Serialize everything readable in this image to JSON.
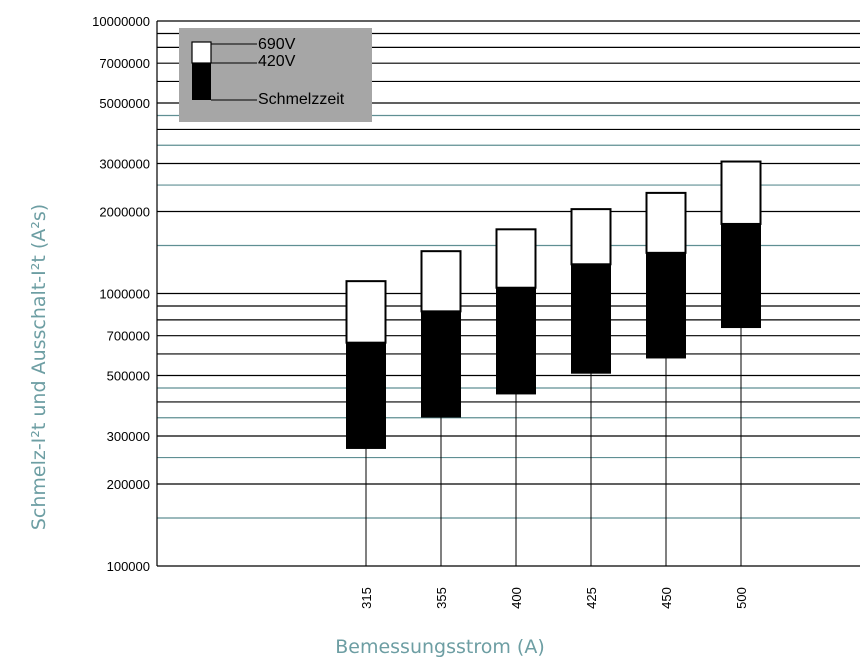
{
  "chart_data": {
    "type": "bar",
    "xlabel": "Bemessungsstrom (A)",
    "ylabel": "Schmelz-I²t und Ausschalt-I²t (A²s)",
    "y_scale": "log",
    "ylim": [
      100000,
      10000000
    ],
    "y_tick_labels": [
      {
        "value": 100000,
        "label": "100000"
      },
      {
        "value": 200000,
        "label": "200000"
      },
      {
        "value": 300000,
        "label": "300000"
      },
      {
        "value": 500000,
        "label": "500000"
      },
      {
        "value": 700000,
        "label": "700000"
      },
      {
        "value": 1000000,
        "label": "1000000"
      },
      {
        "value": 2000000,
        "label": "2000000"
      },
      {
        "value": 3000000,
        "label": "3000000"
      },
      {
        "value": 5000000,
        "label": "5000000"
      },
      {
        "value": 7000000,
        "label": "7000000"
      },
      {
        "value": 10000000,
        "label": "10000000"
      }
    ],
    "gridlines": [
      {
        "value": 150000,
        "color": "#5f8f93"
      },
      {
        "value": 200000,
        "color": "#000000"
      },
      {
        "value": 250000,
        "color": "#5f8f93"
      },
      {
        "value": 300000,
        "color": "#000000"
      },
      {
        "value": 350000,
        "color": "#5f8f93"
      },
      {
        "value": 400000,
        "color": "#000000"
      },
      {
        "value": 450000,
        "color": "#5f8f93"
      },
      {
        "value": 500000,
        "color": "#000000"
      },
      {
        "value": 600000,
        "color": "#000000"
      },
      {
        "value": 700000,
        "color": "#000000"
      },
      {
        "value": 800000,
        "color": "#000000"
      },
      {
        "value": 900000,
        "color": "#000000"
      },
      {
        "value": 1000000,
        "color": "#000000"
      },
      {
        "value": 1500000,
        "color": "#5f8f93"
      },
      {
        "value": 2000000,
        "color": "#000000"
      },
      {
        "value": 2500000,
        "color": "#5f8f93"
      },
      {
        "value": 3000000,
        "color": "#000000"
      },
      {
        "value": 3500000,
        "color": "#5f8f93"
      },
      {
        "value": 4000000,
        "color": "#000000"
      },
      {
        "value": 4500000,
        "color": "#5f8f93"
      },
      {
        "value": 5000000,
        "color": "#000000"
      },
      {
        "value": 6000000,
        "color": "#000000"
      },
      {
        "value": 7000000,
        "color": "#000000"
      },
      {
        "value": 8000000,
        "color": "#000000"
      },
      {
        "value": 9000000,
        "color": "#000000"
      },
      {
        "value": 10000000,
        "color": "#000000"
      }
    ],
    "categories": [
      "315",
      "355",
      "400",
      "425",
      "450",
      "500"
    ],
    "series": [
      {
        "name": "690V",
        "color": "#ffffff",
        "low": [
          660000,
          860000,
          1050000,
          1280000,
          1410000,
          1800000
        ],
        "high": [
          1110000,
          1430000,
          1720000,
          2040000,
          2340000,
          3050000
        ]
      },
      {
        "name": "420V",
        "color": "#000000",
        "low": [
          270000,
          352000,
          428000,
          510000,
          580000,
          750000
        ],
        "high": [
          660000,
          860000,
          1050000,
          1280000,
          1410000,
          1800000
        ]
      }
    ],
    "legend": {
      "position": "top-left",
      "background": "#a6a6a6",
      "items": [
        "690V",
        "420V",
        "Schmelzzeit"
      ]
    }
  }
}
